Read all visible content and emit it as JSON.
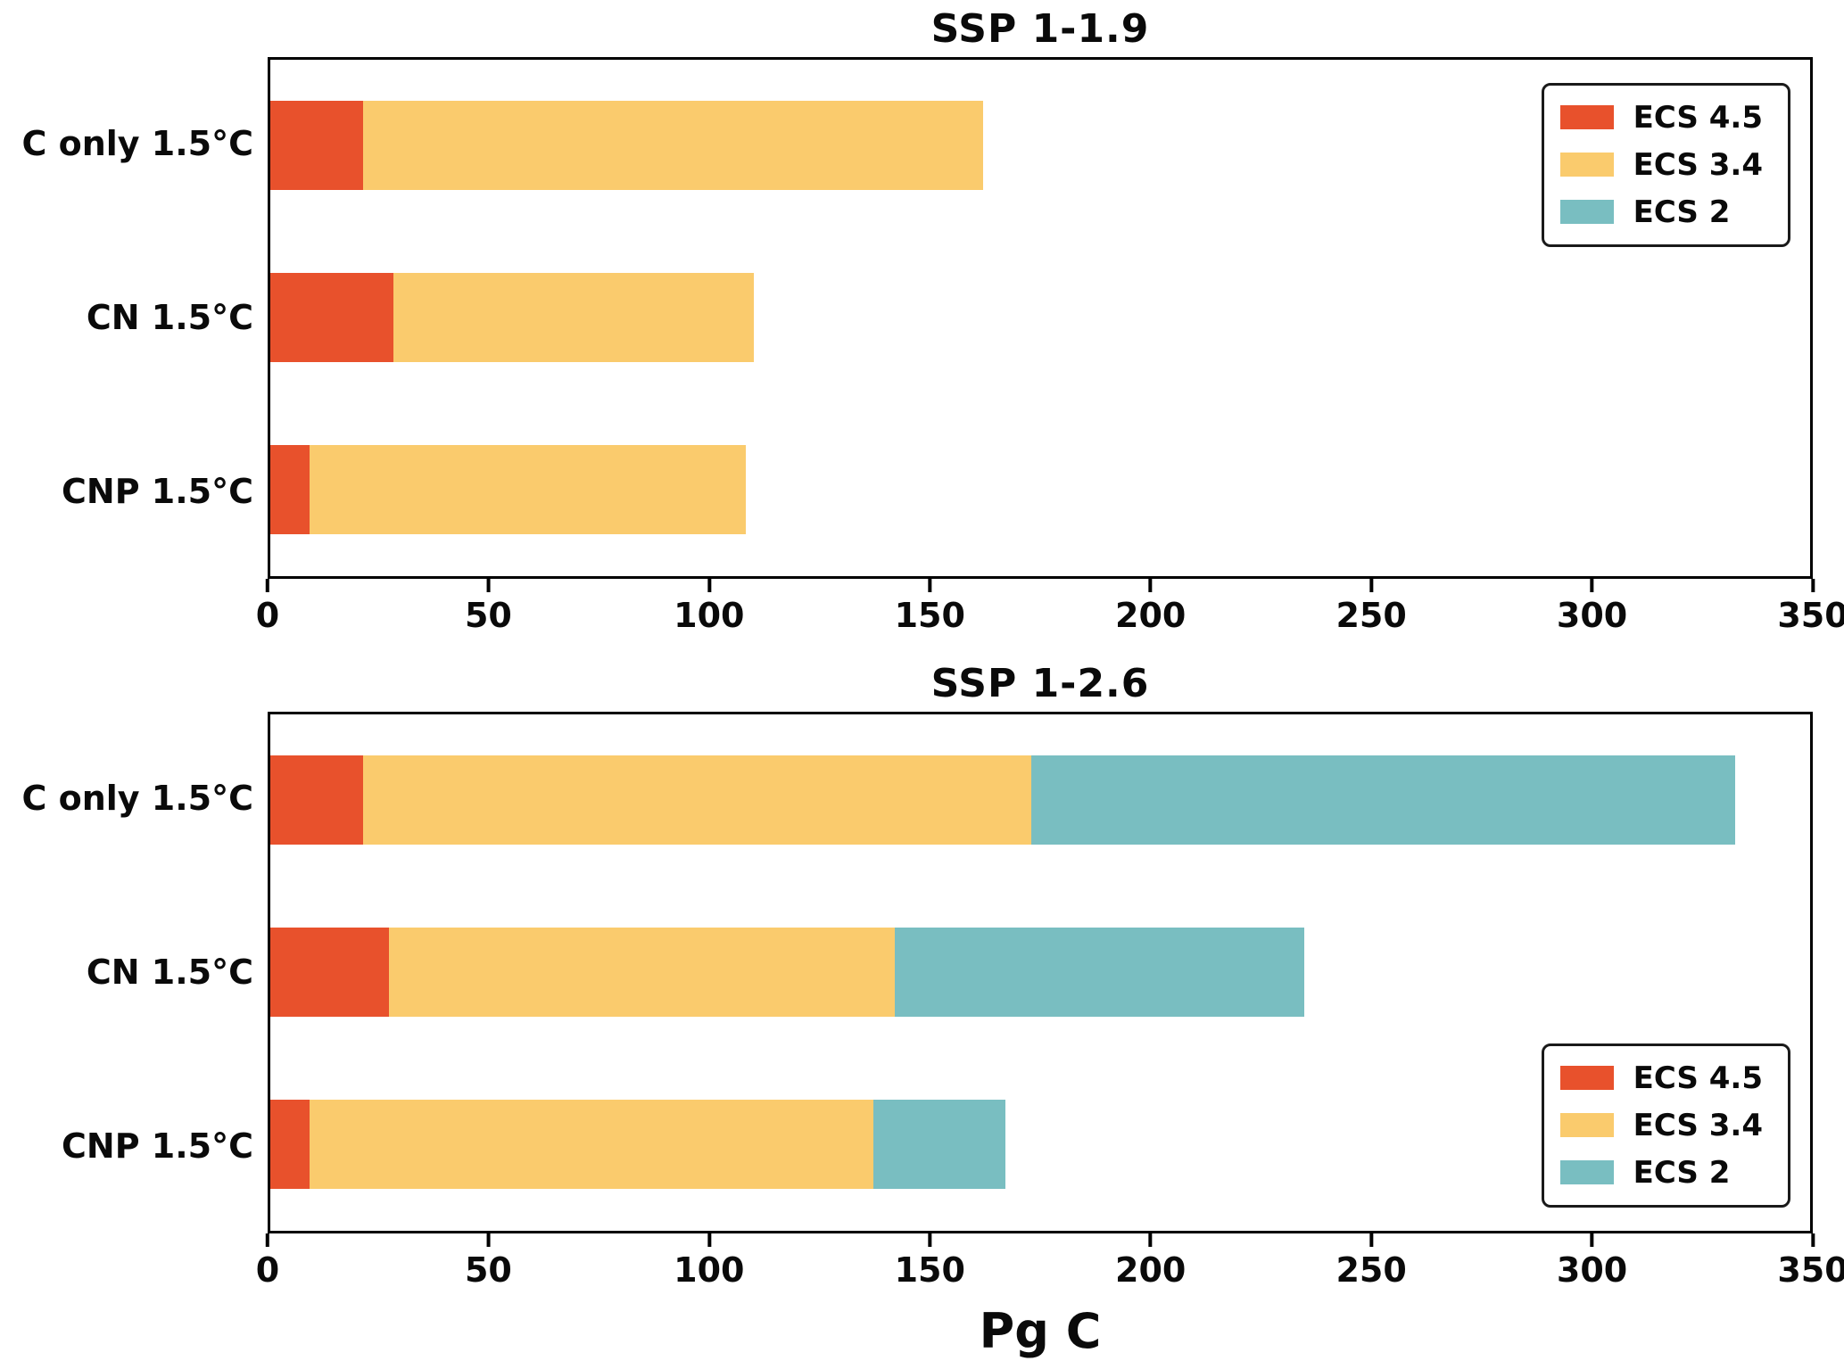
{
  "chart_data": [
    {
      "type": "bar",
      "orientation": "horizontal",
      "stacked": true,
      "title": "SSP 1-1.9",
      "categories": [
        "C only 1.5°C",
        "CN 1.5°C",
        "CNP 1.5°C"
      ],
      "series": [
        {
          "name": "ECS 4.5",
          "color": "#E8512C",
          "values": [
            21,
            28,
            9
          ]
        },
        {
          "name": "ECS 3.4",
          "color": "#FACB6D",
          "values": [
            141,
            82,
            99
          ]
        },
        {
          "name": "ECS 2",
          "color": "#79BEC1",
          "values": [
            0,
            0,
            0
          ]
        }
      ],
      "totals": [
        162,
        110,
        108
      ],
      "xlabel": "",
      "xlim": [
        0,
        350
      ],
      "xticks": [
        0,
        50,
        100,
        150,
        200,
        250,
        300,
        350
      ],
      "grid": false,
      "legend": {
        "position": "top-right",
        "entries": [
          "ECS 4.5",
          "ECS 3.4",
          "ECS 2"
        ]
      }
    },
    {
      "type": "bar",
      "orientation": "horizontal",
      "stacked": true,
      "title": "SSP 1-2.6",
      "categories": [
        "C only 1.5°C",
        "CN 1.5°C",
        "CNP 1.5°C"
      ],
      "series": [
        {
          "name": "ECS 4.5",
          "color": "#E8512C",
          "values": [
            21,
            27,
            9
          ]
        },
        {
          "name": "ECS 3.4",
          "color": "#FACB6D",
          "values": [
            152,
            115,
            128
          ]
        },
        {
          "name": "ECS 2",
          "color": "#79BEC1",
          "values": [
            160,
            93,
            30
          ]
        }
      ],
      "totals": [
        333,
        235,
        167
      ],
      "xlabel": "Pg C",
      "xlim": [
        0,
        350
      ],
      "xticks": [
        0,
        50,
        100,
        150,
        200,
        250,
        300,
        350
      ],
      "grid": false,
      "legend": {
        "position": "bottom-right",
        "entries": [
          "ECS 4.5",
          "ECS 3.4",
          "ECS 2"
        ]
      }
    }
  ],
  "colors": {
    "ecs_4_5": "#E8512C",
    "ecs_3_4": "#FACB6D",
    "ecs_2": "#79BEC1",
    "axis": "#000000",
    "background": "#ffffff"
  }
}
